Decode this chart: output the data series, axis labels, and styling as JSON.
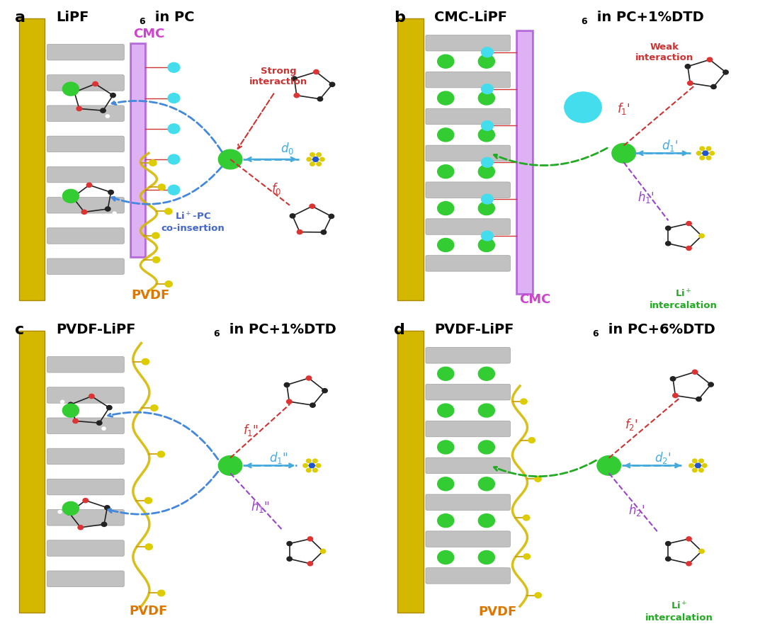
{
  "panels": [
    {
      "label": "a",
      "title": "LiPF",
      "title_sub": "6",
      "title_rest": " in PC",
      "bg_color": "#f9ddd0"
    },
    {
      "label": "b",
      "title": "CMC-LiPF",
      "title_sub": "6",
      "title_rest": " in PC+1%DTD",
      "bg_color": "#e8f0d8"
    },
    {
      "label": "c",
      "title": "PVDF-LiPF",
      "title_sub": "6",
      "title_rest": " in PC+1%DTD",
      "bg_color": "#f9ddd0"
    },
    {
      "label": "d",
      "title": "PVDF-LiPF",
      "title_sub": "6",
      "title_rest": " in PC+6%DTD",
      "bg_color": "#e8f0d8"
    }
  ],
  "figure_width": 10.8,
  "figure_height": 8.91,
  "label_fontsize": 16,
  "title_fontsize": 14,
  "panel_bg_colors": {
    "a": "#f9ddd0",
    "b": "#e8f0d8",
    "c": "#f9ddd0",
    "d": "#e8f0d8"
  },
  "gold_color": "#d4b800",
  "gold_edge": "#aa8800",
  "graphite_color": "#bbbbbb",
  "graphite_edge": "#999999",
  "cmc_color": "#cc88ee",
  "cmc_edge": "#9933cc",
  "pvdf_color": "#d4b800",
  "li_color": "#33cc33",
  "cyan_color": "#44ddee",
  "red_color": "#cc3333",
  "blue_color": "#4488dd",
  "purple_color": "#9944cc",
  "green_color": "#22aa22",
  "orange_color": "#dd7700",
  "pf6_center_color": "#2255cc",
  "pf6_f_color": "#ddcc00"
}
